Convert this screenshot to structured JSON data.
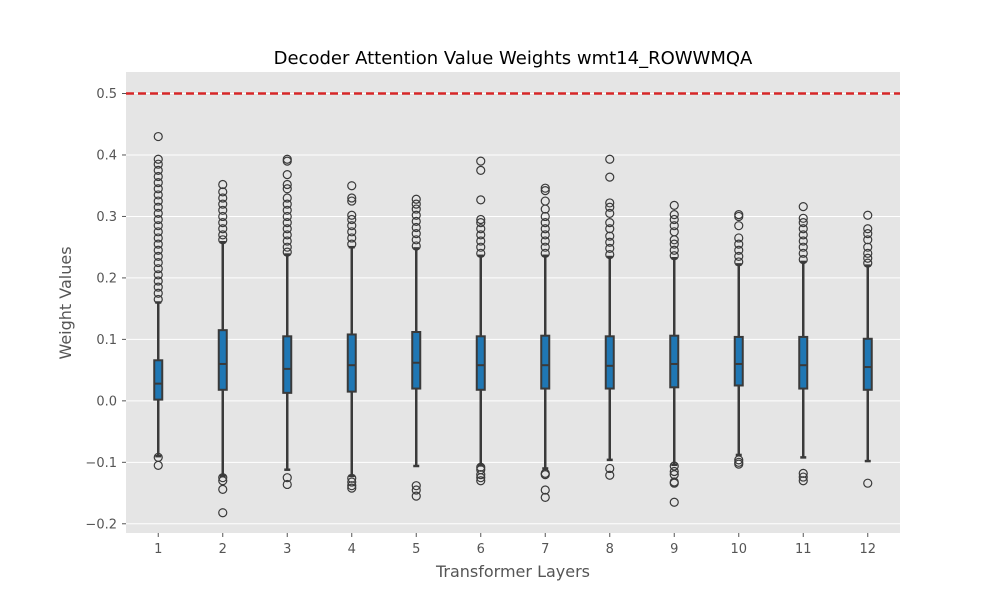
{
  "chart_data": {
    "type": "box",
    "title": "Decoder Attention Value Weights wmt14_ROWWMQA",
    "xlabel": "Transformer Layers",
    "ylabel": "Weight Values",
    "ylim": [
      -0.215,
      0.535
    ],
    "y_ticks": [
      -0.2,
      -0.1,
      0.0,
      0.1,
      0.2,
      0.3,
      0.4,
      0.5
    ],
    "y_tick_labels": [
      "−0.2",
      "−0.1",
      "0.0",
      "0.1",
      "0.2",
      "0.3",
      "0.4",
      "0.5"
    ],
    "grid": true,
    "background": "#e5e5e5",
    "box_color": "#1f77b4",
    "line_color": "#3a3a3a",
    "reference_line": {
      "y": 0.5,
      "color": "#d62728",
      "style": "dashed"
    },
    "categories": [
      "1",
      "2",
      "3",
      "4",
      "5",
      "6",
      "7",
      "8",
      "9",
      "10",
      "11",
      "12"
    ],
    "boxes": [
      {
        "layer": "1",
        "q1": 0.002,
        "median": 0.028,
        "q3": 0.066,
        "whisker_low": -0.09,
        "whisker_high": 0.16,
        "outliers_high": [
          0.165,
          0.175,
          0.185,
          0.195,
          0.205,
          0.215,
          0.225,
          0.235,
          0.245,
          0.255,
          0.265,
          0.275,
          0.285,
          0.295,
          0.305,
          0.315,
          0.325,
          0.335,
          0.345,
          0.355,
          0.365,
          0.375,
          0.385,
          0.393,
          0.43
        ],
        "outliers_low": [
          -0.092,
          -0.105
        ]
      },
      {
        "layer": "2",
        "q1": 0.018,
        "median": 0.06,
        "q3": 0.115,
        "whisker_low": -0.122,
        "whisker_high": 0.258,
        "outliers_high": [
          0.262,
          0.27,
          0.28,
          0.29,
          0.3,
          0.31,
          0.32,
          0.33,
          0.34,
          0.352
        ],
        "outliers_low": [
          -0.125,
          -0.13,
          -0.144,
          -0.182
        ]
      },
      {
        "layer": "3",
        "q1": 0.013,
        "median": 0.052,
        "q3": 0.105,
        "whisker_low": -0.112,
        "whisker_high": 0.238,
        "outliers_high": [
          0.242,
          0.25,
          0.26,
          0.27,
          0.28,
          0.29,
          0.3,
          0.31,
          0.32,
          0.33,
          0.345,
          0.352,
          0.368,
          0.39,
          0.393
        ],
        "outliers_low": [
          -0.125,
          -0.136
        ]
      },
      {
        "layer": "4",
        "q1": 0.015,
        "median": 0.058,
        "q3": 0.108,
        "whisker_low": -0.122,
        "whisker_high": 0.25,
        "outliers_high": [
          0.255,
          0.265,
          0.275,
          0.285,
          0.295,
          0.302,
          0.325,
          0.33,
          0.35
        ],
        "outliers_low": [
          -0.126,
          -0.132,
          -0.138,
          -0.142
        ]
      },
      {
        "layer": "5",
        "q1": 0.02,
        "median": 0.062,
        "q3": 0.112,
        "whisker_low": -0.106,
        "whisker_high": 0.248,
        "outliers_high": [
          0.252,
          0.262,
          0.272,
          0.282,
          0.292,
          0.302,
          0.312,
          0.32,
          0.328
        ],
        "outliers_low": [
          -0.138,
          -0.145,
          -0.155
        ]
      },
      {
        "layer": "6",
        "q1": 0.018,
        "median": 0.058,
        "q3": 0.105,
        "whisker_low": -0.105,
        "whisker_high": 0.236,
        "outliers_high": [
          0.24,
          0.25,
          0.26,
          0.27,
          0.28,
          0.29,
          0.295,
          0.327,
          0.375,
          0.39
        ],
        "outliers_low": [
          -0.108,
          -0.112,
          -0.12,
          -0.125,
          -0.13
        ]
      },
      {
        "layer": "7",
        "q1": 0.02,
        "median": 0.058,
        "q3": 0.106,
        "whisker_low": -0.11,
        "whisker_high": 0.236,
        "outliers_high": [
          0.24,
          0.25,
          0.26,
          0.27,
          0.28,
          0.29,
          0.3,
          0.312,
          0.325,
          0.342,
          0.346
        ],
        "outliers_low": [
          -0.118,
          -0.12,
          -0.145,
          -0.157
        ]
      },
      {
        "layer": "8",
        "q1": 0.02,
        "median": 0.057,
        "q3": 0.105,
        "whisker_low": -0.096,
        "whisker_high": 0.234,
        "outliers_high": [
          0.238,
          0.248,
          0.258,
          0.268,
          0.28,
          0.29,
          0.305,
          0.315,
          0.322,
          0.364,
          0.393
        ],
        "outliers_low": [
          -0.11,
          -0.121
        ]
      },
      {
        "layer": "9",
        "q1": 0.022,
        "median": 0.06,
        "q3": 0.106,
        "whisker_low": -0.104,
        "whisker_high": 0.232,
        "outliers_high": [
          0.236,
          0.245,
          0.255,
          0.262,
          0.275,
          0.285,
          0.295,
          0.303,
          0.318
        ],
        "outliers_low": [
          -0.106,
          -0.115,
          -0.12,
          -0.132,
          -0.134,
          -0.165
        ]
      },
      {
        "layer": "10",
        "q1": 0.025,
        "median": 0.06,
        "q3": 0.104,
        "whisker_low": -0.088,
        "whisker_high": 0.222,
        "outliers_high": [
          0.226,
          0.235,
          0.245,
          0.255,
          0.265,
          0.285,
          0.3,
          0.303
        ],
        "outliers_low": [
          -0.096,
          -0.1,
          -0.103
        ]
      },
      {
        "layer": "11",
        "q1": 0.02,
        "median": 0.058,
        "q3": 0.104,
        "whisker_low": -0.092,
        "whisker_high": 0.226,
        "outliers_high": [
          0.23,
          0.24,
          0.25,
          0.26,
          0.27,
          0.28,
          0.29,
          0.297,
          0.316
        ],
        "outliers_low": [
          -0.118,
          -0.124,
          -0.13
        ]
      },
      {
        "layer": "12",
        "q1": 0.018,
        "median": 0.055,
        "q3": 0.101,
        "whisker_low": -0.098,
        "whisker_high": 0.22,
        "outliers_high": [
          0.224,
          0.232,
          0.24,
          0.25,
          0.262,
          0.272,
          0.28,
          0.302
        ],
        "outliers_low": [
          -0.134
        ]
      }
    ]
  }
}
